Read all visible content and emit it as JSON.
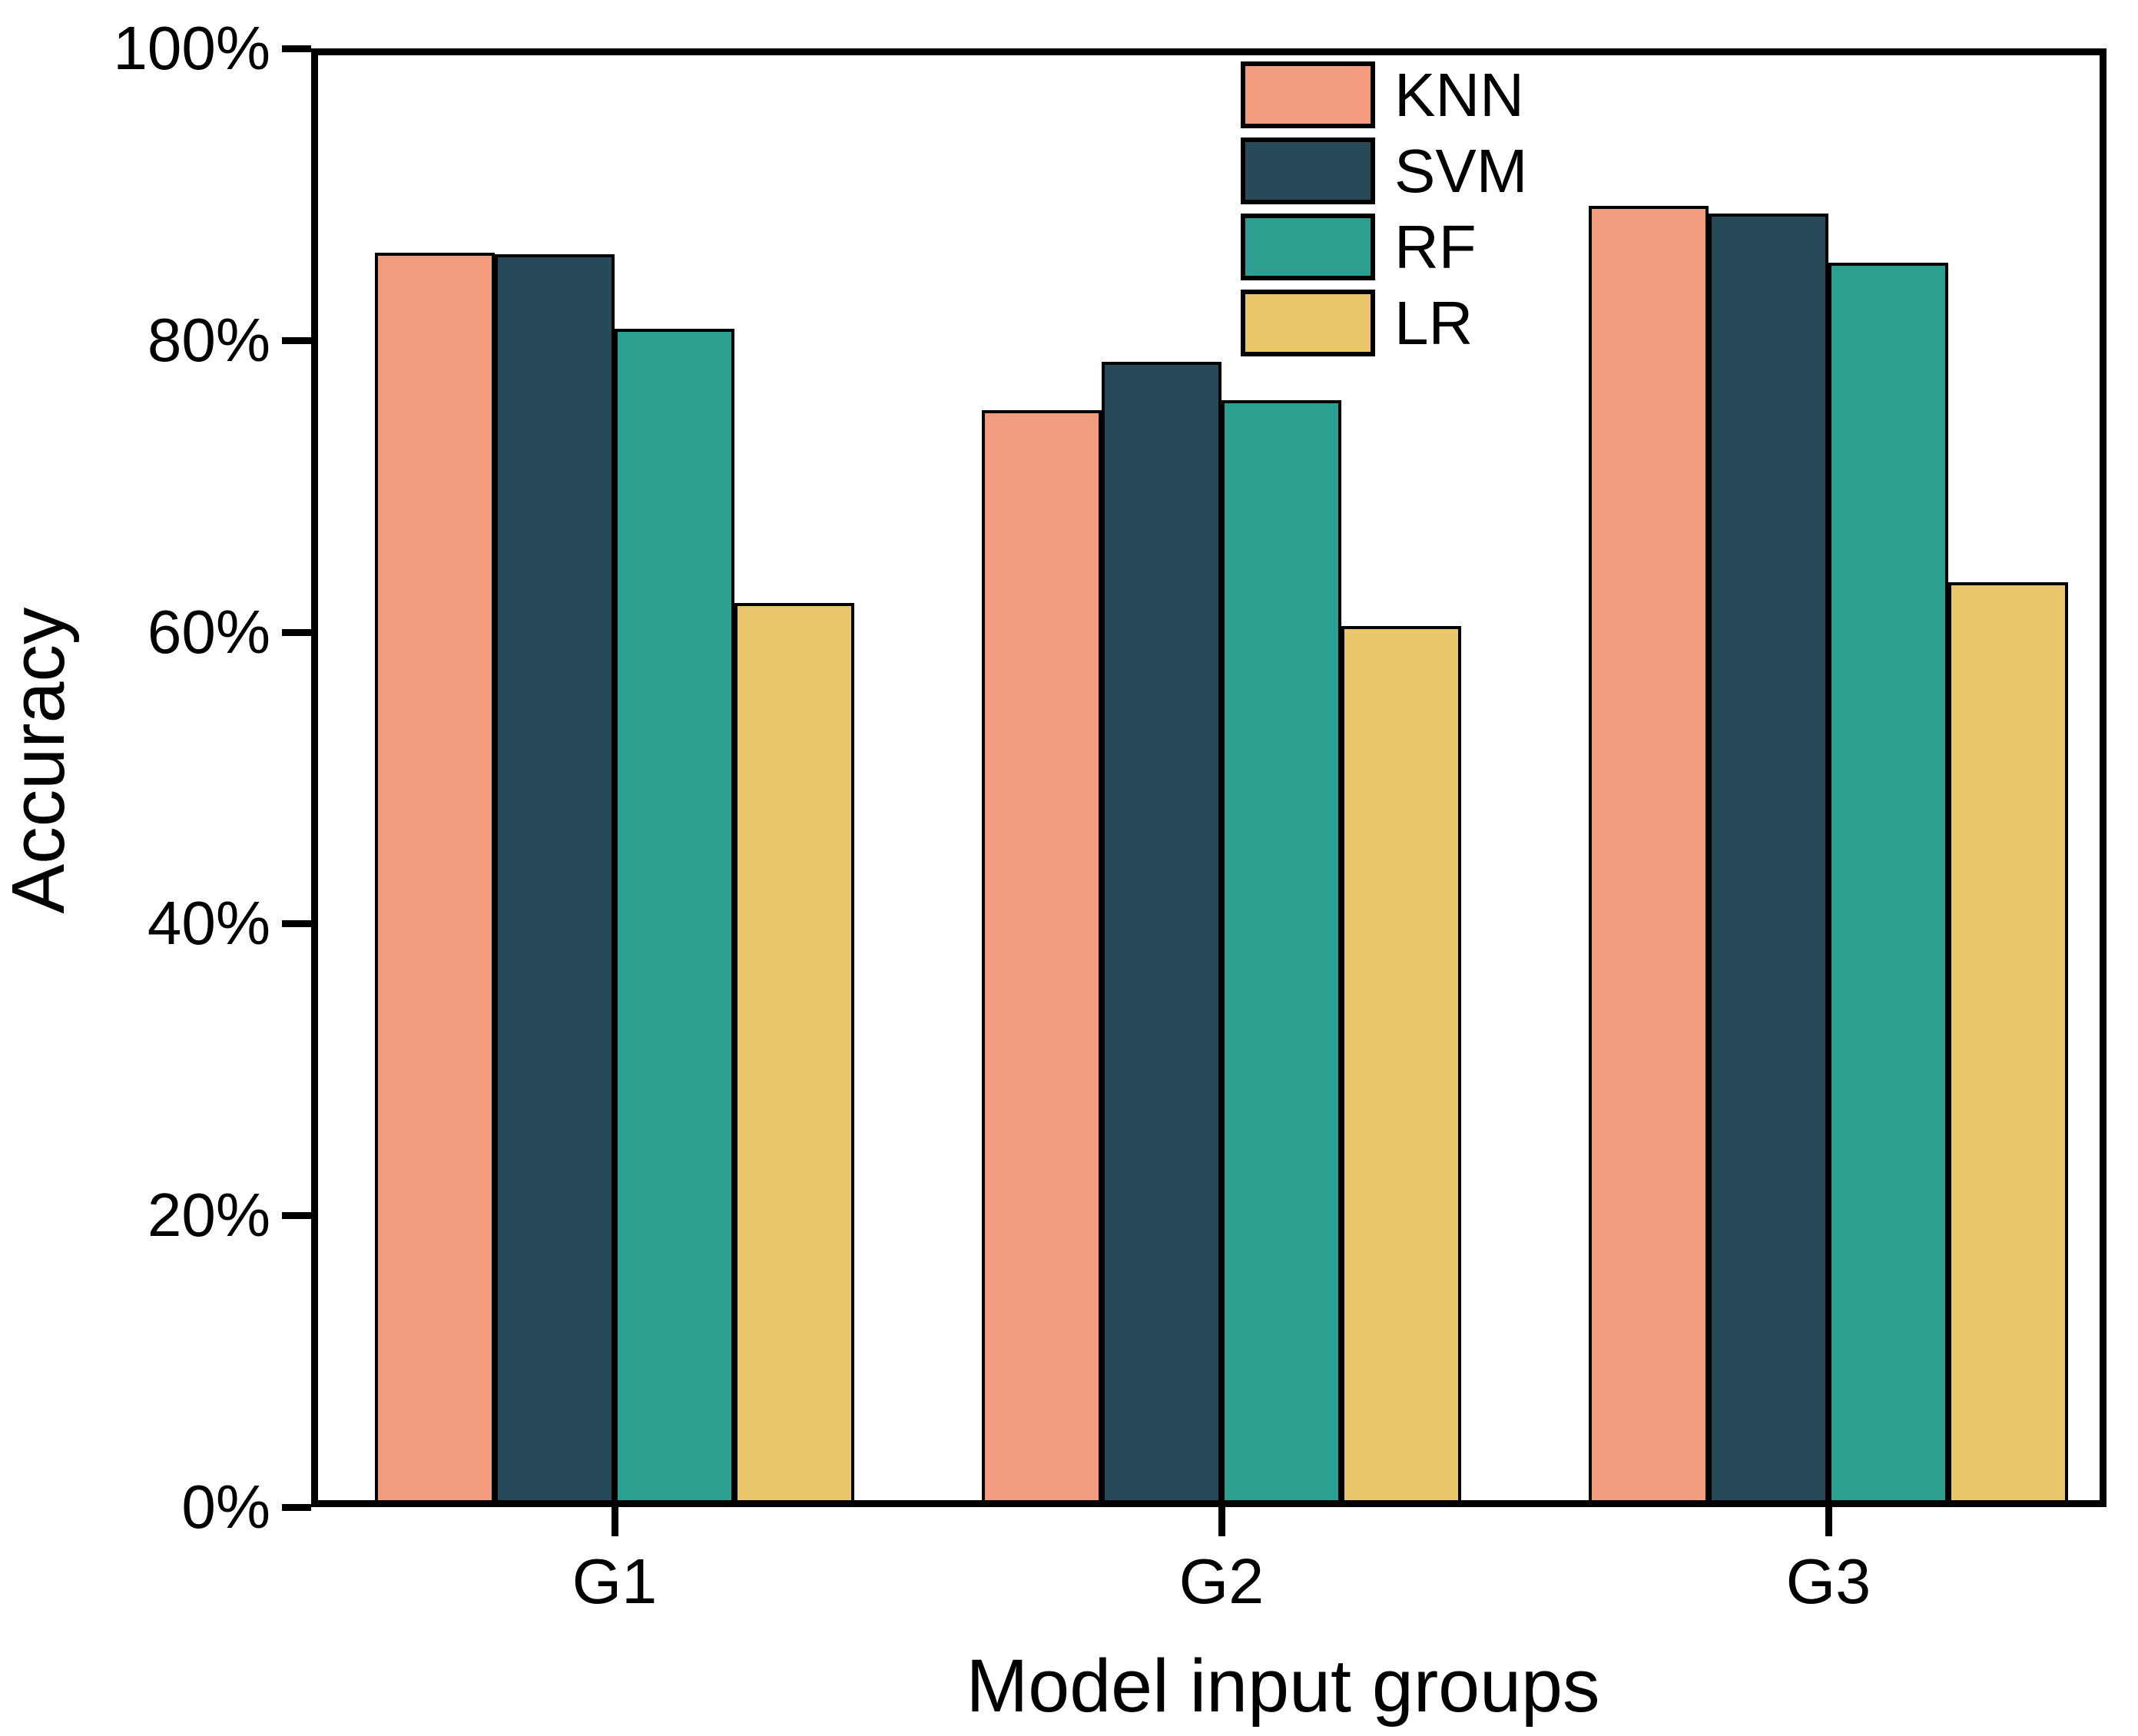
{
  "chart_data": {
    "type": "bar",
    "title": "",
    "xlabel": "Model input groups",
    "ylabel": "Accuracy",
    "categories": [
      "G1",
      "G2",
      "G3"
    ],
    "series": [
      {
        "name": "KNN",
        "color": "#F29B7D",
        "values": [
          86.0,
          75.2,
          89.2
        ]
      },
      {
        "name": "SVM",
        "color": "#264A57",
        "values": [
          85.9,
          78.5,
          88.7
        ]
      },
      {
        "name": "RF",
        "color": "#2BA091",
        "values": [
          80.8,
          75.9,
          85.3
        ]
      },
      {
        "name": "LR",
        "color": "#E9C56B",
        "values": [
          62.0,
          60.4,
          63.4
        ]
      }
    ],
    "ylim": [
      0,
      100
    ],
    "yticks": [
      0,
      20,
      40,
      60,
      80,
      100
    ],
    "ytick_labels": [
      "0%",
      "20%",
      "40%",
      "60%",
      "80%",
      "100%"
    ],
    "grid": false,
    "legend_position": "upper-center-inside",
    "bar_edge_color": "#000000",
    "axis_color": "#000000",
    "background_color": "#FFFFFF"
  }
}
